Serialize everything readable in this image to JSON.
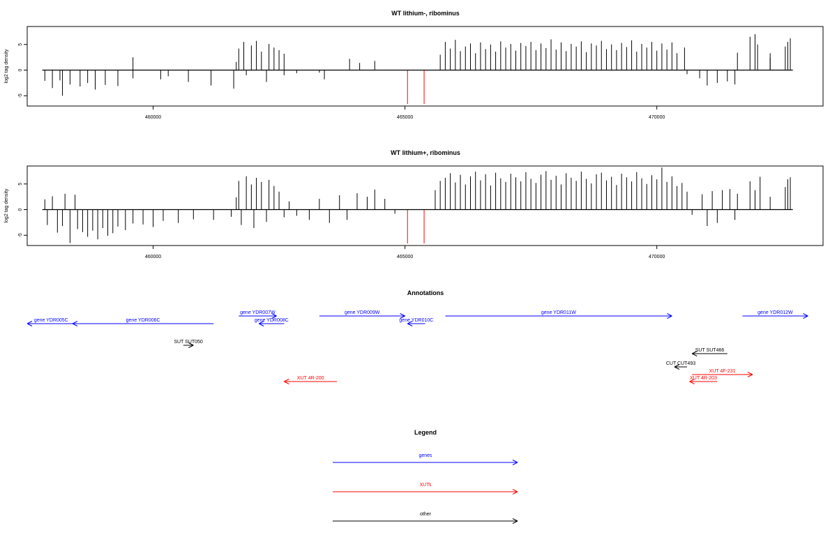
{
  "chart_data": [
    {
      "type": "bar",
      "title": "WT lithium-, ribominus",
      "ylabel": "log2 tag density",
      "xlabel": "",
      "xlim": [
        457500,
        473300
      ],
      "ylim": [
        -7,
        8.5
      ],
      "x_ticks": [
        460000,
        465000,
        470000
      ],
      "x_tick_labels": [
        "460000",
        "465000",
        "470000"
      ],
      "y_ticks": [
        -5,
        0,
        5
      ],
      "y_tick_labels": [
        "-5",
        "0",
        "5"
      ],
      "baseline": [
        457800,
        472700
      ],
      "marker_lines": [
        {
          "x": 465050,
          "y_from": 0,
          "y_to": -6.6,
          "color": "#ff0000"
        },
        {
          "x": 465380,
          "y_from": 0,
          "y_to": -6.6,
          "color": "#ff0000"
        }
      ],
      "series": [
        {
          "values": [
            [
              457850,
              -2.1
            ],
            [
              458000,
              -3.5
            ],
            [
              458150,
              -2.0
            ],
            [
              458200,
              -5.0
            ],
            [
              458350,
              -2.8
            ],
            [
              458550,
              -3.2
            ],
            [
              458700,
              -2.5
            ],
            [
              458850,
              -3.8
            ],
            [
              459050,
              -2.9
            ],
            [
              459300,
              -3.1
            ],
            [
              459600,
              2.5
            ],
            [
              459600,
              -1.6
            ],
            [
              460150,
              -1.8
            ],
            [
              460300,
              -1.2
            ],
            [
              460700,
              -2.3
            ],
            [
              461150,
              -3.0
            ],
            [
              461600,
              -3.6
            ],
            [
              461650,
              1.6
            ],
            [
              461700,
              4.2
            ],
            [
              461800,
              5.5
            ],
            [
              461850,
              -1.0
            ],
            [
              461950,
              4.8
            ],
            [
              462050,
              5.7
            ],
            [
              462150,
              3.6
            ],
            [
              462250,
              -2.3
            ],
            [
              462300,
              5.1
            ],
            [
              462400,
              4.4
            ],
            [
              462500,
              3.9
            ],
            [
              462600,
              3.2
            ],
            [
              462600,
              -1.0
            ],
            [
              462850,
              -0.6
            ],
            [
              463300,
              -0.5
            ],
            [
              463400,
              -1.8
            ],
            [
              463900,
              2.2
            ],
            [
              464100,
              1.4
            ],
            [
              464400,
              1.8
            ],
            [
              465700,
              3.0
            ],
            [
              465800,
              5.5
            ],
            [
              465900,
              4.2
            ],
            [
              466000,
              5.9
            ],
            [
              466100,
              3.7
            ],
            [
              466200,
              4.6
            ],
            [
              466300,
              5.2
            ],
            [
              466400,
              3.3
            ],
            [
              466500,
              5.4
            ],
            [
              466600,
              4.1
            ],
            [
              466700,
              5.0
            ],
            [
              466800,
              3.6
            ],
            [
              466900,
              5.6
            ],
            [
              467000,
              4.4
            ],
            [
              467100,
              5.1
            ],
            [
              467200,
              3.8
            ],
            [
              467300,
              5.3
            ],
            [
              467400,
              4.7
            ],
            [
              467500,
              5.5
            ],
            [
              467600,
              3.9
            ],
            [
              467700,
              5.2
            ],
            [
              467800,
              4.3
            ],
            [
              467900,
              6.0
            ],
            [
              468000,
              4.0
            ],
            [
              468100,
              5.4
            ],
            [
              468200,
              3.7
            ],
            [
              468300,
              5.1
            ],
            [
              468400,
              4.6
            ],
            [
              468500,
              5.6
            ],
            [
              468600,
              3.5
            ],
            [
              468700,
              5.2
            ],
            [
              468800,
              4.8
            ],
            [
              468900,
              5.7
            ],
            [
              469000,
              4.1
            ],
            [
              469100,
              5.0
            ],
            [
              469200,
              3.9
            ],
            [
              469300,
              5.3
            ],
            [
              469400,
              4.5
            ],
            [
              469500,
              5.8
            ],
            [
              469600,
              3.6
            ],
            [
              469700,
              5.1
            ],
            [
              469800,
              4.4
            ],
            [
              469900,
              5.5
            ],
            [
              470000,
              3.8
            ],
            [
              470100,
              5.2
            ],
            [
              470200,
              4.0
            ],
            [
              470300,
              5.4
            ],
            [
              470400,
              3.3
            ],
            [
              470550,
              4.4
            ],
            [
              470600,
              -0.8
            ],
            [
              470850,
              -1.6
            ],
            [
              471000,
              -3.0
            ],
            [
              471200,
              -2.5
            ],
            [
              471400,
              -2.2
            ],
            [
              471600,
              3.4
            ],
            [
              471550,
              -2.8
            ],
            [
              471850,
              6.5
            ],
            [
              471950,
              7.0
            ],
            [
              472000,
              5.0
            ],
            [
              472250,
              2.4
            ],
            [
              472250,
              3.3
            ],
            [
              472550,
              4.6
            ],
            [
              472600,
              5.5
            ],
            [
              472650,
              6.2
            ]
          ]
        }
      ]
    },
    {
      "type": "bar",
      "title": "WT lithium+, ribominus",
      "ylabel": "log2 tag density",
      "xlabel": "",
      "xlim": [
        457500,
        473300
      ],
      "ylim": [
        -7,
        8.5
      ],
      "x_ticks": [
        460000,
        465000,
        470000
      ],
      "x_tick_labels": [
        "460000",
        "465000",
        "470000"
      ],
      "y_ticks": [
        -5,
        0,
        5
      ],
      "y_tick_labels": [
        "-5",
        "0",
        "5"
      ],
      "baseline": [
        457800,
        472700
      ],
      "marker_lines": [
        {
          "x": 465050,
          "y_from": 0,
          "y_to": -6.6,
          "color": "#ff0000"
        },
        {
          "x": 465380,
          "y_from": 0,
          "y_to": -6.6,
          "color": "#ff0000"
        }
      ],
      "series": [
        {
          "values": [
            [
              457850,
              2.0
            ],
            [
              457900,
              -3.0
            ],
            [
              458000,
              2.6
            ],
            [
              458100,
              -4.5
            ],
            [
              458200,
              -3.2
            ],
            [
              458250,
              3.1
            ],
            [
              458350,
              -6.5
            ],
            [
              458450,
              2.9
            ],
            [
              458500,
              -3.8
            ],
            [
              458600,
              -4.4
            ],
            [
              458700,
              -5.3
            ],
            [
              458800,
              -4.1
            ],
            [
              458900,
              -5.8
            ],
            [
              459000,
              -3.6
            ],
            [
              459100,
              -5.1
            ],
            [
              459200,
              -4.6
            ],
            [
              459300,
              -3.3
            ],
            [
              459450,
              -4.0
            ],
            [
              459600,
              -2.7
            ],
            [
              459800,
              -2.9
            ],
            [
              460000,
              -3.4
            ],
            [
              460200,
              -2.2
            ],
            [
              460500,
              -2.6
            ],
            [
              460800,
              -1.9
            ],
            [
              461200,
              -2.0
            ],
            [
              461550,
              -1.4
            ],
            [
              461650,
              2.4
            ],
            [
              461700,
              5.6
            ],
            [
              461750,
              -3.0
            ],
            [
              461850,
              6.5
            ],
            [
              461950,
              4.9
            ],
            [
              462000,
              -3.6
            ],
            [
              462050,
              6.2
            ],
            [
              462150,
              5.4
            ],
            [
              462250,
              -2.4
            ],
            [
              462300,
              5.8
            ],
            [
              462400,
              4.6
            ],
            [
              462500,
              3.5
            ],
            [
              462600,
              -1.5
            ],
            [
              462700,
              1.6
            ],
            [
              462850,
              -1.2
            ],
            [
              463100,
              -2.0
            ],
            [
              463300,
              2.1
            ],
            [
              463500,
              -2.6
            ],
            [
              463700,
              2.8
            ],
            [
              463850,
              -2.0
            ],
            [
              464050,
              3.2
            ],
            [
              464250,
              2.5
            ],
            [
              464400,
              3.9
            ],
            [
              464600,
              2.1
            ],
            [
              464800,
              -0.8
            ],
            [
              465600,
              3.8
            ],
            [
              465700,
              5.6
            ],
            [
              465800,
              6.2
            ],
            [
              465900,
              7.1
            ],
            [
              466000,
              5.3
            ],
            [
              466100,
              6.8
            ],
            [
              466200,
              4.9
            ],
            [
              466300,
              6.5
            ],
            [
              466400,
              7.4
            ],
            [
              466500,
              5.7
            ],
            [
              466600,
              6.9
            ],
            [
              466700,
              4.7
            ],
            [
              466800,
              7.2
            ],
            [
              466900,
              6.1
            ],
            [
              467000,
              5.4
            ],
            [
              467100,
              7.0
            ],
            [
              467200,
              6.3
            ],
            [
              467300,
              5.5
            ],
            [
              467400,
              7.3
            ],
            [
              467500,
              6.0
            ],
            [
              467600,
              5.2
            ],
            [
              467700,
              6.8
            ],
            [
              467800,
              7.5
            ],
            [
              467900,
              5.8
            ],
            [
              468000,
              6.6
            ],
            [
              468100,
              4.9
            ],
            [
              468200,
              7.1
            ],
            [
              468300,
              6.2
            ],
            [
              468400,
              5.6
            ],
            [
              468500,
              7.4
            ],
            [
              468600,
              6.0
            ],
            [
              468700,
              5.1
            ],
            [
              468800,
              6.9
            ],
            [
              468900,
              7.2
            ],
            [
              469000,
              5.7
            ],
            [
              469100,
              6.4
            ],
            [
              469200,
              4.8
            ],
            [
              469300,
              7.0
            ],
            [
              469400,
              6.3
            ],
            [
              469500,
              5.5
            ],
            [
              469600,
              7.3
            ],
            [
              469700,
              6.1
            ],
            [
              469800,
              5.0
            ],
            [
              469900,
              6.7
            ],
            [
              470000,
              5.9
            ],
            [
              470100,
              8.2
            ],
            [
              470200,
              5.4
            ],
            [
              470300,
              6.5
            ],
            [
              470400,
              4.6
            ],
            [
              470500,
              5.2
            ],
            [
              470600,
              3.5
            ],
            [
              470700,
              -1.0
            ],
            [
              470900,
              3.0
            ],
            [
              471000,
              -3.2
            ],
            [
              471100,
              3.6
            ],
            [
              471200,
              -2.6
            ],
            [
              471300,
              3.8
            ],
            [
              471450,
              4.0
            ],
            [
              471550,
              -2.0
            ],
            [
              471600,
              3.1
            ],
            [
              471850,
              5.5
            ],
            [
              471950,
              3.8
            ],
            [
              472050,
              6.4
            ],
            [
              472250,
              2.5
            ],
            [
              472550,
              4.4
            ],
            [
              472600,
              5.9
            ],
            [
              472650,
              6.3
            ]
          ]
        }
      ]
    }
  ],
  "annotations": {
    "title": "Annotations",
    "xlim": [
      457500,
      473300
    ],
    "arrows": [
      {
        "label": "gene YDR005C",
        "start": 458450,
        "end": 457500,
        "row": 1,
        "color": "#0000ff"
      },
      {
        "label": "gene YDR006C",
        "start": 461200,
        "end": 458400,
        "row": 1,
        "color": "#0000ff"
      },
      {
        "label": "gene YDR007W",
        "start": 461700,
        "end": 462450,
        "row": 0,
        "color": "#0000ff"
      },
      {
        "label": "gene YDR008C",
        "start": 462600,
        "end": 462100,
        "row": 1,
        "color": "#0000ff"
      },
      {
        "label": "gene YDR009W",
        "start": 463300,
        "end": 465000,
        "row": 0,
        "color": "#0000ff"
      },
      {
        "label": "gene YDR010C",
        "start": 465400,
        "end": 465050,
        "row": 1,
        "color": "#0000ff"
      },
      {
        "label": "gene YDR011W",
        "start": 465800,
        "end": 470300,
        "row": 0,
        "color": "#0000ff"
      },
      {
        "label": "gene YDR012W",
        "start": 471700,
        "end": 473000,
        "row": 0,
        "color": "#0000ff"
      },
      {
        "label": "SUT SUT050",
        "start": 460600,
        "end": 460800,
        "row": 3,
        "color": "#000000"
      },
      {
        "label": "SUT SUT466",
        "start": 471400,
        "end": 470700,
        "row": 4,
        "color": "#000000"
      },
      {
        "label": "CUT CUT493",
        "start": 470600,
        "end": 470350,
        "row": 5,
        "color": "#000000"
      },
      {
        "label": "XUT 4F-231",
        "start": 470700,
        "end": 471900,
        "row": 6,
        "color": "#ff0000"
      },
      {
        "label": "XUT 4R-203",
        "start": 471200,
        "end": 470650,
        "row": 7,
        "color": "#ff0000"
      },
      {
        "label": "XUT 4R-200",
        "start": 463650,
        "end": 462600,
        "row": 7,
        "color": "#ff0000"
      }
    ]
  },
  "legend": {
    "title": "Legend",
    "items": [
      {
        "label": "genes",
        "color": "#0000ff"
      },
      {
        "label": "XUTs",
        "color": "#ff0000"
      },
      {
        "label": "other",
        "color": "#000000"
      }
    ]
  }
}
